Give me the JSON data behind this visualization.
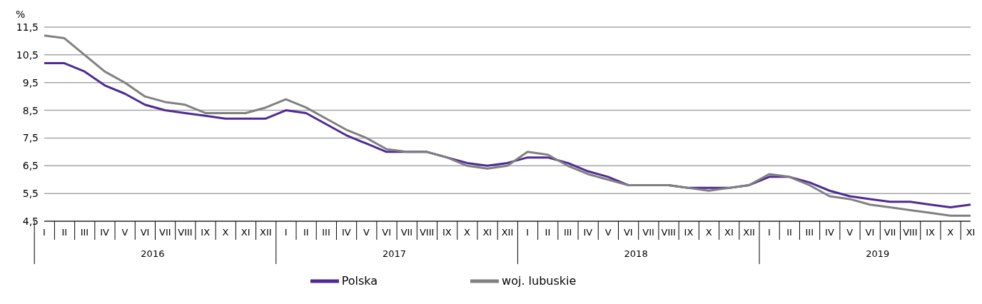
{
  "chart_data": {
    "type": "line",
    "ylabel": "%",
    "categories": [
      "I",
      "II",
      "III",
      "IV",
      "V",
      "VI",
      "VII",
      "VIII",
      "IX",
      "X",
      "XI",
      "XII",
      "I",
      "II",
      "III",
      "IV",
      "V",
      "VI",
      "VII",
      "VIII",
      "IX",
      "X",
      "XI",
      "XII",
      "I",
      "II",
      "III",
      "IV",
      "V",
      "VI",
      "VII",
      "VIII",
      "IX",
      "X",
      "XI",
      "XII",
      "I",
      "II",
      "III",
      "IV",
      "V",
      "VI",
      "VII",
      "VIII",
      "IX",
      "X",
      "XI"
    ],
    "annotations": [
      "2016",
      "2017",
      "2018",
      "2019"
    ],
    "series": [
      {
        "name": "Polska",
        "color": "#4f2a96",
        "values": [
          10.2,
          10.2,
          9.9,
          9.4,
          9.1,
          8.7,
          8.5,
          8.4,
          8.3,
          8.2,
          8.2,
          8.2,
          8.5,
          8.4,
          8.0,
          7.6,
          7.3,
          7.0,
          7.0,
          7.0,
          6.8,
          6.6,
          6.5,
          6.6,
          6.8,
          6.8,
          6.6,
          6.3,
          6.1,
          5.8,
          5.8,
          5.8,
          5.7,
          5.7,
          5.7,
          5.8,
          6.1,
          6.1,
          5.9,
          5.6,
          5.4,
          5.3,
          5.2,
          5.2,
          5.1,
          5.0,
          5.1
        ]
      },
      {
        "name": "woj. lubuskie",
        "color": "#808080",
        "values": [
          11.2,
          11.1,
          10.5,
          9.9,
          9.5,
          9.0,
          8.8,
          8.7,
          8.4,
          8.4,
          8.4,
          8.6,
          8.9,
          8.6,
          8.2,
          7.8,
          7.5,
          7.1,
          7.0,
          7.0,
          6.8,
          6.5,
          6.4,
          6.5,
          7.0,
          6.9,
          6.5,
          6.2,
          6.0,
          5.8,
          5.8,
          5.8,
          5.7,
          5.6,
          5.7,
          5.8,
          6.2,
          6.1,
          5.8,
          5.4,
          5.3,
          5.1,
          5.0,
          4.9,
          4.8,
          4.7,
          4.7
        ]
      }
    ],
    "ylim": [
      4.5,
      11.5
    ],
    "yticks": [
      {
        "value": 4.5,
        "label": "4,5"
      },
      {
        "value": 5.5,
        "label": "5,5"
      },
      {
        "value": 6.5,
        "label": "6,5"
      },
      {
        "value": 7.5,
        "label": "7,5"
      },
      {
        "value": 8.5,
        "label": "8,5"
      },
      {
        "value": 9.5,
        "label": "9,5"
      },
      {
        "value": 10.5,
        "label": "10,5"
      },
      {
        "value": 11.5,
        "label": "11,5"
      }
    ],
    "grid": "y",
    "legend": "bottom",
    "marker": "none",
    "line_style": "solid"
  }
}
